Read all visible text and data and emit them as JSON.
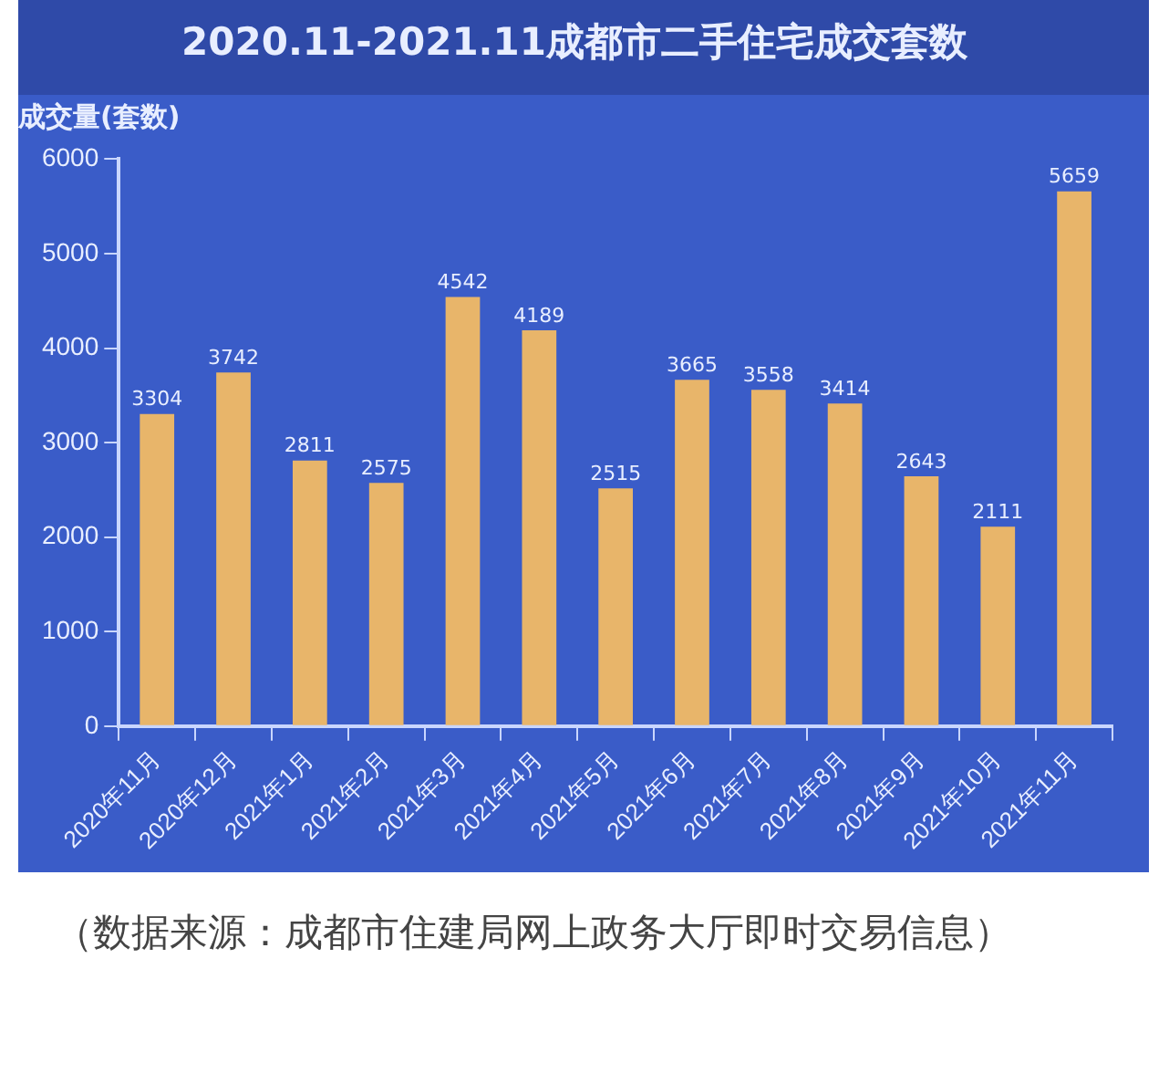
{
  "chart_data": {
    "type": "bar",
    "title": "2020.11-2021.11成都市二手住宅成交套数",
    "ylabel": "成交量(套数)",
    "categories": [
      "2020年11月",
      "2020年12月",
      "2021年1月",
      "2021年2月",
      "2021年3月",
      "2021年4月",
      "2021年5月",
      "2021年6月",
      "2021年7月",
      "2021年8月",
      "2021年9月",
      "2021年10月",
      "2021年11月"
    ],
    "values": [
      3304,
      3742,
      2811,
      2575,
      4542,
      4189,
      2515,
      3665,
      3558,
      3414,
      2643,
      2111,
      5659
    ],
    "color": "#e8b56a",
    "ylim": [
      0,
      6000
    ],
    "yticks": [
      0,
      1000,
      2000,
      3000,
      4000,
      5000,
      6000
    ],
    "grid": false,
    "legend": false,
    "data_labels": true,
    "annotations": [
      "（数据来源：成都市住建局网上政务大厅即时交易信息）"
    ]
  }
}
